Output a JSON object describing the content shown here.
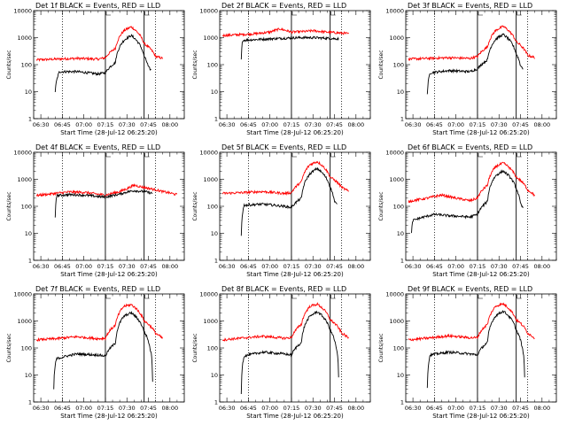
{
  "figure": {
    "background": "#ffffff",
    "colors": {
      "events": "#000000",
      "lld": "#ff0000",
      "axes": "#000000"
    }
  },
  "chart_data": [
    {
      "type": "line",
      "detector": "Det 1f",
      "title": "Det 1f BLACK = Events, RED = LLD",
      "xlabel": "Start Time (28-Jul-12 06:25:20)",
      "ylabel": "Counts/sec",
      "yscale": "log",
      "ylim": [
        1,
        10000
      ],
      "yticks": [
        "1",
        "10",
        "100",
        "1000",
        "10000"
      ],
      "xlim_min": [
        -5,
        100
      ],
      "xticks": [
        "06:30",
        "06:45",
        "07:00",
        "07:15",
        "07:30",
        "07:45",
        "08:00"
      ],
      "xtick_minutes": [
        0,
        15,
        30,
        45,
        60,
        75,
        90
      ],
      "dotted_lines_min": [
        15,
        80
      ],
      "solid_lines_min": [
        45,
        72
      ],
      "series": [
        {
          "name": "Events",
          "color": "#000000",
          "x_min": [
            10,
            13,
            25,
            40,
            45,
            52,
            58,
            63,
            72,
            75,
            77
          ],
          "values": [
            10,
            55,
            55,
            45,
            50,
            120,
            800,
            1200,
            200,
            80,
            60
          ]
        },
        {
          "name": "LLD",
          "color": "#ff0000",
          "x_min": [
            -3,
            10,
            25,
            40,
            45,
            52,
            58,
            63,
            72,
            80,
            85
          ],
          "values": [
            150,
            160,
            170,
            160,
            180,
            400,
            1800,
            2500,
            600,
            200,
            170
          ]
        }
      ]
    },
    {
      "type": "line",
      "detector": "Det 2f",
      "title": "Det 2f BLACK = Events, RED = LLD",
      "xlabel": "Start Time (28-Jul-12 06:25:20)",
      "ylabel": "Counts/sec",
      "yscale": "log",
      "ylim": [
        1,
        10000
      ],
      "yticks": [
        "1",
        "10",
        "100",
        "1000",
        "10000"
      ],
      "xlim_min": [
        -5,
        100
      ],
      "xticks": [
        "06:30",
        "06:45",
        "07:00",
        "07:15",
        "07:30",
        "07:45",
        "08:00"
      ],
      "xtick_minutes": [
        0,
        15,
        30,
        45,
        60,
        75,
        90
      ],
      "dotted_lines_min": [
        15,
        80
      ],
      "solid_lines_min": [
        45,
        72
      ],
      "series": [
        {
          "name": "Events",
          "color": "#000000",
          "x_min": [
            10,
            11,
            20,
            30,
            40,
            50,
            60,
            70,
            78
          ],
          "values": [
            150,
            800,
            850,
            900,
            950,
            1000,
            1000,
            950,
            900
          ]
        },
        {
          "name": "LLD",
          "color": "#ff0000",
          "x_min": [
            -3,
            10,
            20,
            30,
            37,
            45,
            55,
            60,
            70,
            85
          ],
          "values": [
            1200,
            1300,
            1400,
            1600,
            2100,
            1600,
            1700,
            1800,
            1600,
            1400
          ]
        }
      ]
    },
    {
      "type": "line",
      "detector": "Det 3f",
      "title": "Det 3f BLACK = Events, RED = LLD",
      "xlabel": "Start Time (28-Jul-12 06:25:20)",
      "ylabel": "Counts/sec",
      "yscale": "log",
      "ylim": [
        1,
        10000
      ],
      "yticks": [
        "1",
        "10",
        "100",
        "1000",
        "10000"
      ],
      "xlim_min": [
        -5,
        100
      ],
      "xticks": [
        "06:30",
        "06:45",
        "07:00",
        "07:15",
        "07:30",
        "07:45",
        "08:00"
      ],
      "xtick_minutes": [
        0,
        15,
        30,
        45,
        60,
        75,
        90
      ],
      "dotted_lines_min": [
        15,
        80
      ],
      "solid_lines_min": [
        45,
        72
      ],
      "series": [
        {
          "name": "Events",
          "color": "#000000",
          "x_min": [
            10,
            12,
            25,
            40,
            45,
            52,
            58,
            63,
            72,
            75,
            77
          ],
          "values": [
            8,
            50,
            60,
            55,
            70,
            150,
            900,
            1300,
            250,
            90,
            70
          ]
        },
        {
          "name": "LLD",
          "color": "#ff0000",
          "x_min": [
            -3,
            10,
            25,
            40,
            45,
            52,
            58,
            63,
            72,
            80,
            85
          ],
          "values": [
            160,
            170,
            180,
            170,
            200,
            450,
            1900,
            2600,
            700,
            220,
            180
          ]
        }
      ]
    },
    {
      "type": "line",
      "detector": "Det 4f",
      "title": "Det 4f BLACK = Events, RED = LLD",
      "xlabel": "Start Time (28-Jul-12 06:25:20)",
      "ylabel": "Counts/sec",
      "yscale": "log",
      "ylim": [
        1,
        10000
      ],
      "yticks": [
        "1",
        "10",
        "100",
        "1000",
        "10000"
      ],
      "xlim_min": [
        -5,
        100
      ],
      "xticks": [
        "06:30",
        "06:45",
        "07:00",
        "07:15",
        "07:30",
        "07:45",
        "08:00"
      ],
      "xtick_minutes": [
        0,
        15,
        30,
        45,
        60,
        75,
        90
      ],
      "dotted_lines_min": [
        15,
        80
      ],
      "solid_lines_min": [
        45,
        72
      ],
      "series": [
        {
          "name": "Events",
          "color": "#000000",
          "x_min": [
            10,
            11,
            20,
            30,
            40,
            45,
            55,
            60,
            65,
            72,
            78
          ],
          "values": [
            40,
            250,
            270,
            260,
            230,
            220,
            280,
            340,
            380,
            350,
            300
          ]
        },
        {
          "name": "LLD",
          "color": "#ff0000",
          "x_min": [
            -3,
            10,
            20,
            30,
            40,
            45,
            55,
            60,
            65,
            72,
            85,
            95
          ],
          "values": [
            250,
            300,
            340,
            330,
            280,
            260,
            350,
            450,
            600,
            500,
            350,
            270
          ]
        }
      ]
    },
    {
      "type": "line",
      "detector": "Det 5f",
      "title": "Det 5f BLACK = Events, RED = LLD",
      "xlabel": "Start Time (28-Jul-12 06:25:20)",
      "ylabel": "Counts/sec",
      "yscale": "log",
      "ylim": [
        1,
        10000
      ],
      "yticks": [
        "1",
        "10",
        "100",
        "1000",
        "10000"
      ],
      "xlim_min": [
        -5,
        100
      ],
      "xticks": [
        "06:30",
        "06:45",
        "07:00",
        "07:15",
        "07:30",
        "07:45",
        "08:00"
      ],
      "xtick_minutes": [
        0,
        15,
        30,
        45,
        60,
        75,
        90
      ],
      "dotted_lines_min": [
        15,
        80
      ],
      "solid_lines_min": [
        45,
        72
      ],
      "series": [
        {
          "name": "Events",
          "color": "#000000",
          "x_min": [
            10,
            12,
            25,
            40,
            45,
            52,
            58,
            63,
            72,
            75,
            77
          ],
          "values": [
            8,
            110,
            120,
            100,
            90,
            200,
            1600,
            2500,
            500,
            150,
            110
          ]
        },
        {
          "name": "LLD",
          "color": "#ff0000",
          "x_min": [
            -3,
            10,
            25,
            40,
            45,
            52,
            58,
            63,
            72,
            80,
            85
          ],
          "values": [
            300,
            320,
            350,
            300,
            320,
            800,
            3500,
            4500,
            1200,
            500,
            350
          ]
        }
      ]
    },
    {
      "type": "line",
      "detector": "Det 6f",
      "title": "Det 6f BLACK = Events, RED = LLD",
      "xlabel": "Start Time (28-Jul-12 06:25:20)",
      "ylabel": "Counts/sec",
      "yscale": "log",
      "ylim": [
        1,
        10000
      ],
      "yticks": [
        "1",
        "10",
        "100",
        "1000",
        "10000"
      ],
      "xlim_min": [
        -5,
        100
      ],
      "xticks": [
        "06:30",
        "06:45",
        "07:00",
        "07:15",
        "07:30",
        "07:45",
        "08:00"
      ],
      "xtick_minutes": [
        0,
        15,
        30,
        45,
        60,
        75,
        90
      ],
      "dotted_lines_min": [
        15,
        80
      ],
      "solid_lines_min": [
        45,
        72
      ],
      "series": [
        {
          "name": "Events",
          "color": "#000000",
          "x_min": [
            -1,
            0,
            15,
            25,
            40,
            45,
            52,
            58,
            63,
            72,
            75,
            77
          ],
          "values": [
            10,
            30,
            50,
            45,
            40,
            50,
            150,
            1400,
            2000,
            450,
            120,
            80
          ]
        },
        {
          "name": "LLD",
          "color": "#ff0000",
          "x_min": [
            -3,
            10,
            20,
            30,
            40,
            45,
            52,
            58,
            63,
            72,
            80,
            85
          ],
          "values": [
            150,
            200,
            260,
            200,
            160,
            200,
            600,
            3000,
            4000,
            1200,
            400,
            250
          ]
        }
      ]
    },
    {
      "type": "line",
      "detector": "Det 7f",
      "title": "Det 7f BLACK = Events, RED = LLD",
      "xlabel": "Start Time (28-Jul-12 06:25:20)",
      "ylabel": "Counts/sec",
      "yscale": "log",
      "ylim": [
        1,
        10000
      ],
      "yticks": [
        "1",
        "10",
        "100",
        "1000",
        "10000"
      ],
      "xlim_min": [
        -5,
        100
      ],
      "xticks": [
        "06:30",
        "06:45",
        "07:00",
        "07:15",
        "07:30",
        "07:45",
        "08:00"
      ],
      "xtick_minutes": [
        0,
        15,
        30,
        45,
        60,
        75,
        90
      ],
      "dotted_lines_min": [
        15,
        80
      ],
      "solid_lines_min": [
        45,
        72
      ],
      "series": [
        {
          "name": "Events",
          "color": "#000000",
          "x_min": [
            9,
            11,
            25,
            40,
            45,
            52,
            58,
            63,
            72,
            76,
            77,
            78
          ],
          "values": [
            3,
            40,
            60,
            55,
            50,
            150,
            1500,
            2000,
            400,
            100,
            60,
            3
          ]
        },
        {
          "name": "LLD",
          "color": "#ff0000",
          "x_min": [
            -3,
            10,
            25,
            40,
            45,
            52,
            58,
            63,
            72,
            80,
            85
          ],
          "values": [
            200,
            220,
            260,
            220,
            230,
            700,
            3500,
            4000,
            1000,
            350,
            220
          ]
        }
      ]
    },
    {
      "type": "line",
      "detector": "Det 8f",
      "title": "Det 8f BLACK = Events, RED = LLD",
      "xlabel": "Start Time (28-Jul-12 06:25:20)",
      "ylabel": "Counts/sec",
      "yscale": "log",
      "ylim": [
        1,
        10000
      ],
      "yticks": [
        "1",
        "10",
        "100",
        "1000",
        "10000"
      ],
      "xlim_min": [
        -5,
        100
      ],
      "xticks": [
        "06:30",
        "06:45",
        "07:00",
        "07:15",
        "07:30",
        "07:45",
        "08:00"
      ],
      "xtick_minutes": [
        0,
        15,
        30,
        45,
        60,
        75,
        90
      ],
      "dotted_lines_min": [
        15,
        80
      ],
      "solid_lines_min": [
        45,
        72
      ],
      "series": [
        {
          "name": "Events",
          "color": "#000000",
          "x_min": [
            10,
            12,
            25,
            40,
            45,
            52,
            58,
            63,
            72,
            76,
            77,
            78
          ],
          "values": [
            2,
            50,
            70,
            60,
            55,
            160,
            1500,
            2200,
            450,
            110,
            60,
            2
          ]
        },
        {
          "name": "LLD",
          "color": "#ff0000",
          "x_min": [
            -3,
            10,
            25,
            40,
            45,
            52,
            58,
            63,
            72,
            80,
            85
          ],
          "values": [
            200,
            230,
            270,
            230,
            240,
            750,
            3500,
            4200,
            1100,
            350,
            230
          ]
        }
      ]
    },
    {
      "type": "line",
      "detector": "Det 9f",
      "title": "Det 9f BLACK = Events, RED = LLD",
      "xlabel": "Start Time (28-Jul-12 06:25:20)",
      "ylabel": "Counts/sec",
      "yscale": "log",
      "ylim": [
        1,
        10000
      ],
      "yticks": [
        "1",
        "10",
        "100",
        "1000",
        "10000"
      ],
      "xlim_min": [
        -5,
        100
      ],
      "xticks": [
        "06:30",
        "06:45",
        "07:00",
        "07:15",
        "07:30",
        "07:45",
        "08:00"
      ],
      "xtick_minutes": [
        0,
        15,
        30,
        45,
        60,
        75,
        90
      ],
      "dotted_lines_min": [
        15,
        80
      ],
      "solid_lines_min": [
        45,
        72
      ],
      "series": [
        {
          "name": "Events",
          "color": "#000000",
          "x_min": [
            10,
            12,
            25,
            40,
            45,
            52,
            58,
            63,
            72,
            76,
            77,
            78
          ],
          "values": [
            3,
            55,
            70,
            60,
            55,
            160,
            1600,
            2300,
            450,
            110,
            60,
            3
          ]
        },
        {
          "name": "LLD",
          "color": "#ff0000",
          "x_min": [
            -3,
            10,
            25,
            40,
            45,
            52,
            58,
            63,
            72,
            80,
            85
          ],
          "values": [
            200,
            230,
            280,
            240,
            240,
            750,
            3600,
            4300,
            1100,
            350,
            230
          ]
        }
      ]
    }
  ]
}
